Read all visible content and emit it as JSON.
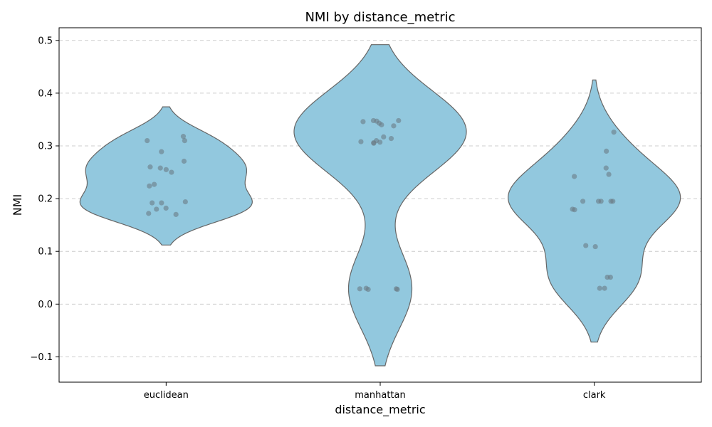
{
  "chart_data": {
    "type": "violin",
    "title": "NMI by distance_metric",
    "xlabel": "distance_metric",
    "ylabel": "NMI",
    "ylim": [
      -0.148,
      0.524
    ],
    "yticks": [
      -0.1,
      0.0,
      0.1,
      0.2,
      0.3,
      0.4,
      0.5
    ],
    "ytick_labels": [
      "−0.1",
      "0.0",
      "0.1",
      "0.2",
      "0.3",
      "0.4",
      "0.5"
    ],
    "categories": [
      "euclidean",
      "manhattan",
      "clark"
    ],
    "grid": "y-dashed",
    "colors": {
      "violin_fill": "#92c8de",
      "violin_edge": "#666666",
      "point": "#6b7b85",
      "grid": "#cccccc"
    },
    "series": [
      {
        "category": "euclidean",
        "violin_range": [
          0.112,
          0.374
        ],
        "values": [
          0.318,
          0.31,
          0.31,
          0.289,
          0.271,
          0.26,
          0.258,
          0.255,
          0.25,
          0.227,
          0.224,
          0.194,
          0.192,
          0.192,
          0.182,
          0.18,
          0.172,
          0.17
        ]
      },
      {
        "category": "manhattan",
        "violin_range": [
          -0.117,
          0.492
        ],
        "values": [
          0.348,
          0.348,
          0.347,
          0.346,
          0.343,
          0.34,
          0.338,
          0.317,
          0.314,
          0.31,
          0.308,
          0.307,
          0.306,
          0.305,
          0.03,
          0.029,
          0.029,
          0.028,
          0.028
        ]
      },
      {
        "category": "clark",
        "violin_range": [
          -0.072,
          0.425
        ],
        "values": [
          0.326,
          0.29,
          0.258,
          0.246,
          0.242,
          0.195,
          0.195,
          0.195,
          0.195,
          0.195,
          0.18,
          0.179,
          0.111,
          0.109,
          0.051,
          0.051,
          0.03,
          0.03
        ]
      }
    ]
  }
}
